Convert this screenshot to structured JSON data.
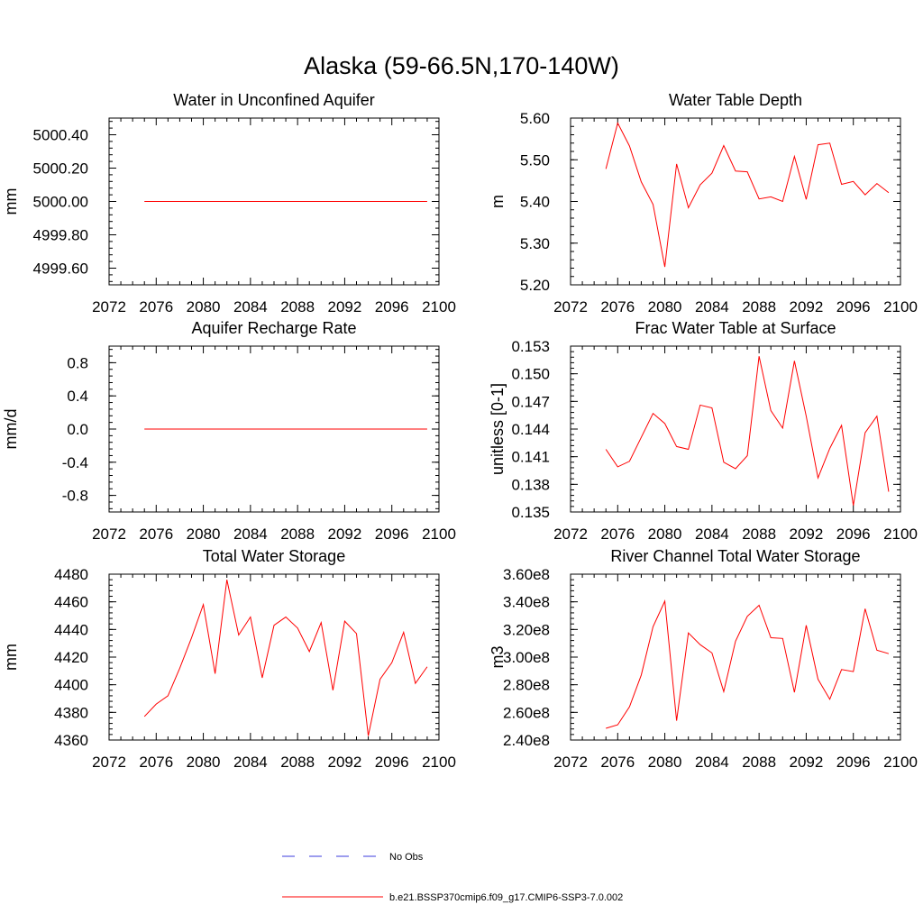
{
  "figure": {
    "title": "Alaska (59-66.5N,170-140W)"
  },
  "colors": {
    "model_line": "#ff0000",
    "obs_line": "#3b3bdc",
    "axis": "#000000"
  },
  "legend": {
    "obs_label": "No Obs",
    "model_label": "b.e21.BSSP370cmip6.f09_g17.CMIP6-SSP3-7.0.002"
  },
  "chart_data": [
    {
      "type": "line",
      "title": "Water in Unconfined Aquifer",
      "ylabel": "mm",
      "xlim": [
        2072,
        2100
      ],
      "ylim": [
        4999.5,
        5000.5
      ],
      "xticks": [
        "2072",
        "2076",
        "2080",
        "2084",
        "2088",
        "2092",
        "2096",
        "2100"
      ],
      "yticks": [
        {
          "v": 4999.6,
          "label": "4999.60"
        },
        {
          "v": 4999.8,
          "label": "4999.80"
        },
        {
          "v": 5000.0,
          "label": "5000.00"
        },
        {
          "v": 5000.2,
          "label": "5000.20"
        },
        {
          "v": 5000.4,
          "label": "5000.40"
        }
      ],
      "x": [
        2075,
        2076,
        2077,
        2078,
        2079,
        2080,
        2081,
        2082,
        2083,
        2084,
        2085,
        2086,
        2087,
        2088,
        2089,
        2090,
        2091,
        2092,
        2093,
        2094,
        2095,
        2096,
        2097,
        2098,
        2099
      ],
      "series": [
        {
          "values": [
            5000,
            5000,
            5000,
            5000,
            5000,
            5000,
            5000,
            5000,
            5000,
            5000,
            5000,
            5000,
            5000,
            5000,
            5000,
            5000,
            5000,
            5000,
            5000,
            5000,
            5000,
            5000,
            5000,
            5000,
            5000
          ]
        }
      ]
    },
    {
      "type": "line",
      "title": "Water Table Depth",
      "ylabel": "m",
      "xlim": [
        2072,
        2100
      ],
      "ylim": [
        5.2,
        5.6
      ],
      "xticks": [
        "2072",
        "2076",
        "2080",
        "2084",
        "2088",
        "2092",
        "2096",
        "2100"
      ],
      "yticks": [
        {
          "v": 5.2,
          "label": "5.20"
        },
        {
          "v": 5.3,
          "label": "5.30"
        },
        {
          "v": 5.4,
          "label": "5.40"
        },
        {
          "v": 5.5,
          "label": "5.50"
        },
        {
          "v": 5.6,
          "label": "5.60"
        }
      ],
      "x": [
        2075,
        2076,
        2077,
        2078,
        2079,
        2080,
        2081,
        2082,
        2083,
        2084,
        2085,
        2086,
        2087,
        2088,
        2089,
        2090,
        2091,
        2092,
        2093,
        2094,
        2095,
        2096,
        2097,
        2098,
        2099
      ],
      "series": [
        {
          "values": [
            5.478,
            5.588,
            5.533,
            5.447,
            5.393,
            5.243,
            5.49,
            5.385,
            5.44,
            5.468,
            5.534,
            5.473,
            5.471,
            5.406,
            5.411,
            5.4,
            5.508,
            5.405,
            5.536,
            5.54,
            5.441,
            5.448,
            5.416,
            5.443,
            5.421
          ]
        }
      ]
    },
    {
      "type": "line",
      "title": "Aquifer Recharge Rate",
      "ylabel": "mm/d",
      "xlim": [
        2072,
        2100
      ],
      "ylim": [
        -1.0,
        1.0
      ],
      "xticks": [
        "2072",
        "2076",
        "2080",
        "2084",
        "2088",
        "2092",
        "2096",
        "2100"
      ],
      "yticks": [
        {
          "v": -0.8,
          "label": "-0.8"
        },
        {
          "v": -0.4,
          "label": "-0.4"
        },
        {
          "v": 0.0,
          "label": "0.0"
        },
        {
          "v": 0.4,
          "label": "0.4"
        },
        {
          "v": 0.8,
          "label": "0.8"
        }
      ],
      "x": [
        2075,
        2076,
        2077,
        2078,
        2079,
        2080,
        2081,
        2082,
        2083,
        2084,
        2085,
        2086,
        2087,
        2088,
        2089,
        2090,
        2091,
        2092,
        2093,
        2094,
        2095,
        2096,
        2097,
        2098,
        2099
      ],
      "series": [
        {
          "values": [
            0,
            0,
            0,
            0,
            0,
            0,
            0,
            0,
            0,
            0,
            0,
            0,
            0,
            0,
            0,
            0,
            0,
            0,
            0,
            0,
            0,
            0,
            0,
            0,
            0
          ]
        }
      ]
    },
    {
      "type": "line",
      "title": "Frac Water Table at Surface",
      "ylabel": "unitless [0-1]",
      "xlim": [
        2072,
        2100
      ],
      "ylim": [
        0.135,
        0.153
      ],
      "xticks": [
        "2072",
        "2076",
        "2080",
        "2084",
        "2088",
        "2092",
        "2096",
        "2100"
      ],
      "yticks": [
        {
          "v": 0.135,
          "label": "0.135"
        },
        {
          "v": 0.138,
          "label": "0.138"
        },
        {
          "v": 0.141,
          "label": "0.141"
        },
        {
          "v": 0.144,
          "label": "0.144"
        },
        {
          "v": 0.147,
          "label": "0.147"
        },
        {
          "v": 0.15,
          "label": "0.150"
        },
        {
          "v": 0.153,
          "label": "0.153"
        }
      ],
      "x": [
        2075,
        2076,
        2077,
        2078,
        2079,
        2080,
        2081,
        2082,
        2083,
        2084,
        2085,
        2086,
        2087,
        2088,
        2089,
        2090,
        2091,
        2092,
        2093,
        2094,
        2095,
        2096,
        2097,
        2098,
        2099
      ],
      "series": [
        {
          "values": [
            0.1418,
            0.1399,
            0.1405,
            0.1431,
            0.1457,
            0.1446,
            0.1421,
            0.1418,
            0.1466,
            0.1463,
            0.1404,
            0.1397,
            0.1411,
            0.1519,
            0.146,
            0.1441,
            0.1514,
            0.1454,
            0.1387,
            0.1419,
            0.1444,
            0.1357,
            0.1436,
            0.1454,
            0.1372
          ]
        }
      ]
    },
    {
      "type": "line",
      "title": "Total Water Storage",
      "ylabel": "mm",
      "xlim": [
        2072,
        2100
      ],
      "ylim": [
        4360,
        4480
      ],
      "xticks": [
        "2072",
        "2076",
        "2080",
        "2084",
        "2088",
        "2092",
        "2096",
        "2100"
      ],
      "yticks": [
        {
          "v": 4360,
          "label": "4360"
        },
        {
          "v": 4380,
          "label": "4380"
        },
        {
          "v": 4400,
          "label": "4400"
        },
        {
          "v": 4420,
          "label": "4420"
        },
        {
          "v": 4440,
          "label": "4440"
        },
        {
          "v": 4460,
          "label": "4460"
        },
        {
          "v": 4480,
          "label": "4480"
        }
      ],
      "x": [
        2075,
        2076,
        2077,
        2078,
        2079,
        2080,
        2081,
        2082,
        2083,
        2084,
        2085,
        2086,
        2087,
        2088,
        2089,
        2090,
        2091,
        2092,
        2093,
        2094,
        2095,
        2096,
        2097,
        2098,
        2099
      ],
      "series": [
        {
          "values": [
            4377,
            4386,
            4392,
            4412,
            4434,
            4458,
            4408,
            4476,
            4436,
            4449,
            4405,
            4443,
            4449,
            4441,
            4424,
            4445,
            4396,
            4446,
            4437,
            4363,
            4404,
            4416,
            4438,
            4401,
            4413
          ]
        }
      ]
    },
    {
      "type": "line",
      "title": "River Channel Total Water Storage",
      "ylabel": "m3",
      "xlim": [
        2072,
        2100
      ],
      "ylim": [
        240000000,
        360000000
      ],
      "xticks": [
        "2072",
        "2076",
        "2080",
        "2084",
        "2088",
        "2092",
        "2096",
        "2100"
      ],
      "yticks": [
        {
          "v": 240000000,
          "label": "2.40e8"
        },
        {
          "v": 260000000,
          "label": "2.60e8"
        },
        {
          "v": 280000000,
          "label": "2.80e8"
        },
        {
          "v": 300000000,
          "label": "3.00e8"
        },
        {
          "v": 320000000,
          "label": "3.20e8"
        },
        {
          "v": 340000000,
          "label": "3.40e8"
        },
        {
          "v": 360000000,
          "label": "3.60e8"
        }
      ],
      "x": [
        2075,
        2076,
        2077,
        2078,
        2079,
        2080,
        2081,
        2082,
        2083,
        2084,
        2085,
        2086,
        2087,
        2088,
        2089,
        2090,
        2091,
        2092,
        2093,
        2094,
        2095,
        2096,
        2097,
        2098,
        2099
      ],
      "series": [
        {
          "values": [
            248500000,
            251000000,
            264000000,
            287000000,
            322000000,
            340500000,
            254000000,
            317500000,
            309000000,
            303000000,
            275000000,
            311500000,
            329500000,
            337500000,
            314000000,
            313500000,
            274500000,
            323000000,
            284000000,
            269500000,
            291000000,
            289500000,
            335000000,
            305000000,
            302500000
          ]
        }
      ]
    }
  ]
}
